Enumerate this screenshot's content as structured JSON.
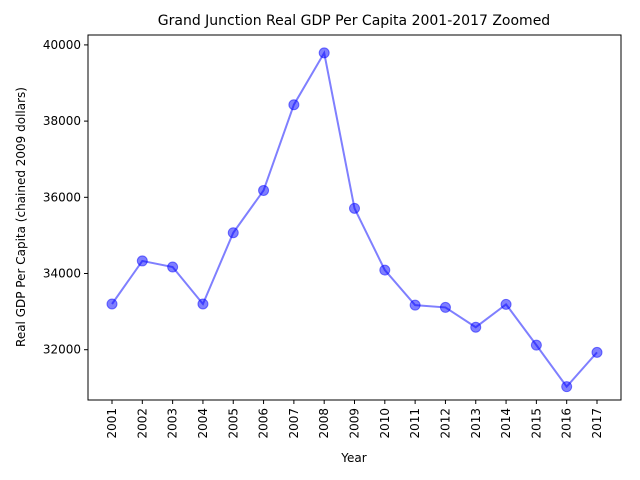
{
  "chart_data": {
    "type": "line",
    "title": "Grand Junction Real GDP Per Capita 2001-2017 Zoomed",
    "xlabel": "Year",
    "ylabel": "Real GDP Per Capita (chained 2009 dollars)",
    "categories": [
      "2001",
      "2002",
      "2003",
      "2004",
      "2005",
      "2006",
      "2007",
      "2008",
      "2009",
      "2010",
      "2011",
      "2012",
      "2013",
      "2014",
      "2015",
      "2016",
      "2017"
    ],
    "series": [
      {
        "values": [
          33200,
          34330,
          34170,
          33200,
          35070,
          36180,
          38430,
          39790,
          35710,
          34090,
          33170,
          33110,
          32590,
          33190,
          32120,
          31030,
          31930
        ]
      }
    ],
    "yticks": [
      32000,
      34000,
      36000,
      38000,
      40000
    ],
    "ylim": [
      30680,
      40260
    ],
    "grid": false,
    "line_color": "#0000ff",
    "marker": "circle"
  }
}
